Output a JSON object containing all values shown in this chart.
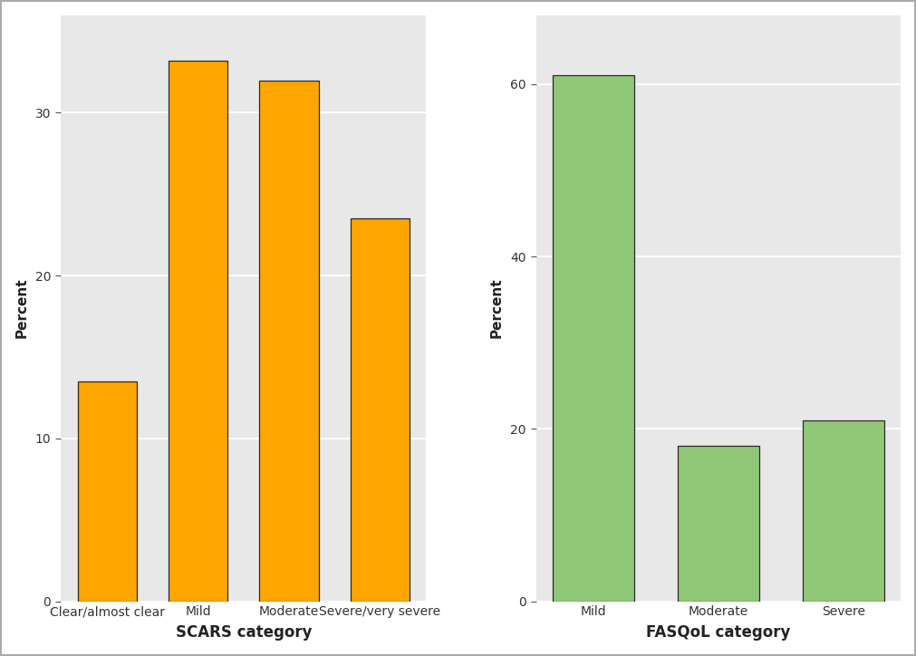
{
  "scars_categories": [
    "Clear/almost clear",
    "Mild",
    "Moderate",
    "Severe/very severe"
  ],
  "scars_values": [
    13.5,
    33.2,
    32.0,
    23.5
  ],
  "scars_color": "#FFA500",
  "scars_edgecolor": "#2a2a2a",
  "scars_xlabel": "SCARS category",
  "scars_ylabel": "Percent",
  "scars_ylim": [
    0,
    36
  ],
  "scars_yticks": [
    0,
    10,
    20,
    30
  ],
  "fasqol_categories": [
    "Mild",
    "Moderate",
    "Severe"
  ],
  "fasqol_values": [
    61.0,
    18.0,
    21.0
  ],
  "fasqol_color": "#90C878",
  "fasqol_edgecolor": "#2a2a2a",
  "fasqol_xlabel": "FASQoL category",
  "fasqol_ylabel": "Percent",
  "fasqol_ylim": [
    0,
    68
  ],
  "fasqol_yticks": [
    0,
    20,
    40,
    60
  ],
  "panel_bg": "#e8e8e8",
  "grid_color": "#ffffff",
  "outer_bg": "#ffffff",
  "bar_linewidth": 0.9,
  "xlabel_fontsize": 12,
  "ylabel_fontsize": 11,
  "tick_fontsize": 10,
  "xticklabel_fontsize": 9,
  "bar_width": 0.65
}
